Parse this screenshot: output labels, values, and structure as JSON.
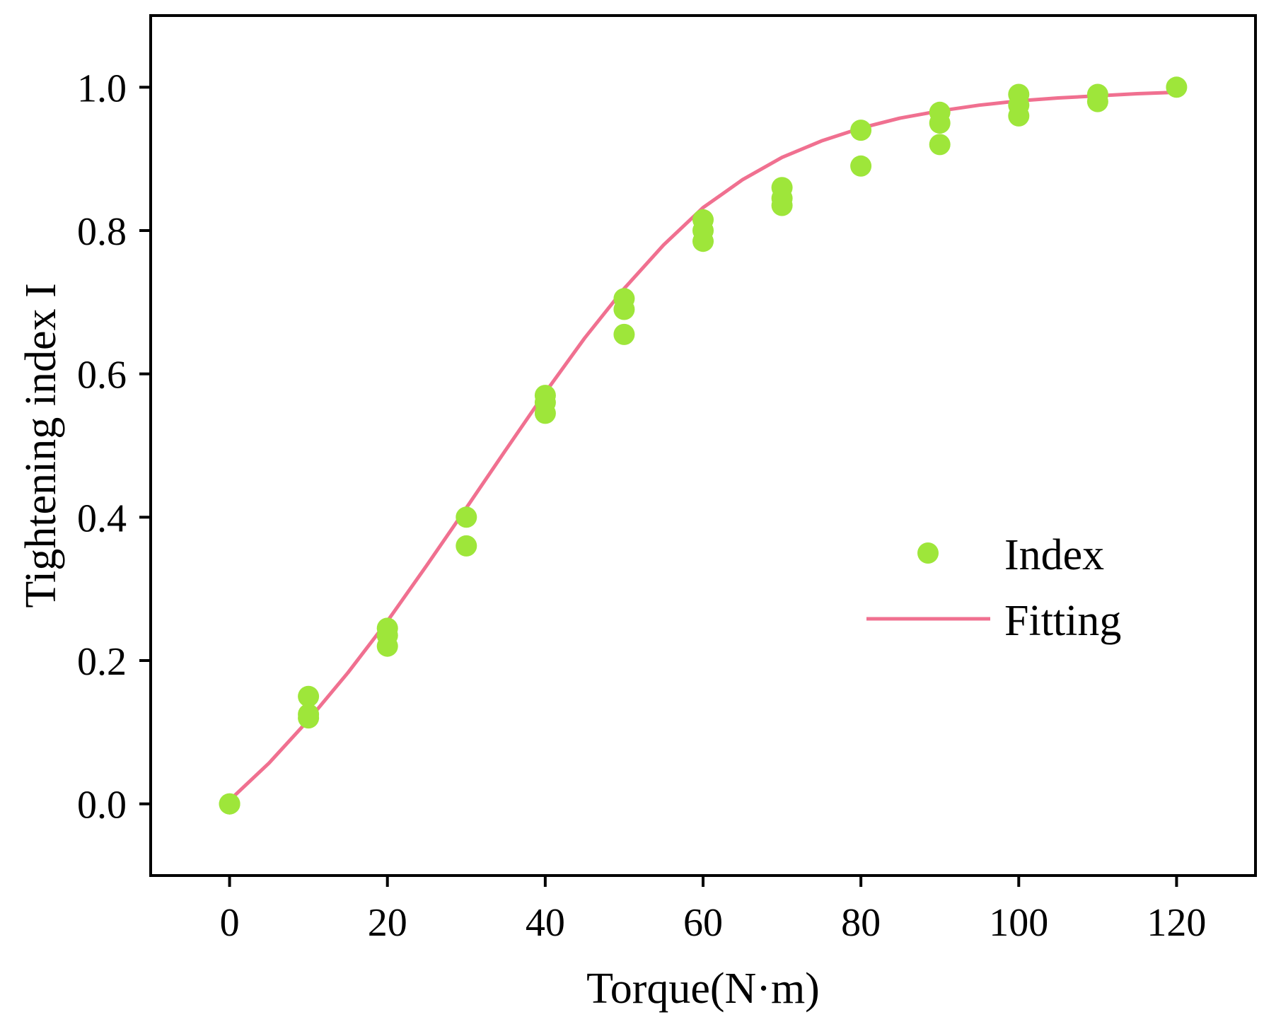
{
  "chart_data": {
    "type": "scatter",
    "title": "",
    "xlabel": "Torque(N·m)",
    "ylabel": "Tightening index  I",
    "xlim": [
      -10,
      130
    ],
    "ylim": [
      -0.1,
      1.1
    ],
    "xticks": [
      0,
      20,
      40,
      60,
      80,
      100,
      120
    ],
    "xtick_labels": [
      "0",
      "20",
      "40",
      "60",
      "80",
      "100",
      "120"
    ],
    "yticks": [
      0.0,
      0.2,
      0.4,
      0.6,
      0.8,
      1.0
    ],
    "ytick_labels": [
      "0.0",
      "0.2",
      "0.4",
      "0.6",
      "0.8",
      "1.0"
    ],
    "grid": false,
    "legend_position": "center-right",
    "series": [
      {
        "name": "Index",
        "kind": "scatter",
        "color": "#9ee63a",
        "points": [
          [
            0,
            0.0
          ],
          [
            0,
            0.0
          ],
          [
            10,
            0.15
          ],
          [
            10,
            0.125
          ],
          [
            10,
            0.12
          ],
          [
            20,
            0.245
          ],
          [
            20,
            0.235
          ],
          [
            20,
            0.22
          ],
          [
            30,
            0.4
          ],
          [
            30,
            0.36
          ],
          [
            40,
            0.57
          ],
          [
            40,
            0.56
          ],
          [
            40,
            0.545
          ],
          [
            50,
            0.705
          ],
          [
            50,
            0.69
          ],
          [
            50,
            0.655
          ],
          [
            60,
            0.815
          ],
          [
            60,
            0.8
          ],
          [
            60,
            0.785
          ],
          [
            70,
            0.86
          ],
          [
            70,
            0.845
          ],
          [
            70,
            0.835
          ],
          [
            80,
            0.94
          ],
          [
            80,
            0.89
          ],
          [
            90,
            0.965
          ],
          [
            90,
            0.95
          ],
          [
            90,
            0.92
          ],
          [
            100,
            0.99
          ],
          [
            100,
            0.975
          ],
          [
            100,
            0.96
          ],
          [
            110,
            0.99
          ],
          [
            110,
            0.98
          ],
          [
            120,
            1.0
          ]
        ]
      },
      {
        "name": "Fitting",
        "kind": "line",
        "color": "#f07090",
        "x": [
          0,
          5,
          10,
          15,
          20,
          25,
          30,
          35,
          40,
          45,
          50,
          55,
          60,
          65,
          70,
          75,
          80,
          85,
          90,
          95,
          100,
          105,
          110,
          115,
          120
        ],
        "y": [
          0.005,
          0.057,
          0.117,
          0.183,
          0.255,
          0.333,
          0.413,
          0.494,
          0.574,
          0.65,
          0.719,
          0.78,
          0.832,
          0.871,
          0.902,
          0.925,
          0.943,
          0.957,
          0.967,
          0.975,
          0.981,
          0.985,
          0.988,
          0.991,
          0.993
        ]
      }
    ]
  }
}
